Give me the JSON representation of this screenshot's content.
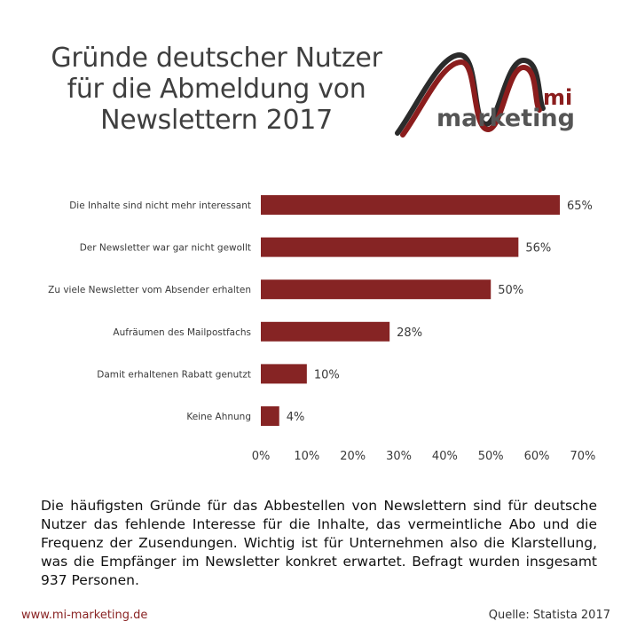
{
  "title_lines": [
    "Gründe deutscher Nutzer",
    "für die Abmeldung von",
    "Newslettern 2017"
  ],
  "logo": {
    "mark": "mi",
    "word": "marketing",
    "colors": {
      "red": "#8b1d1d",
      "gray": "#555555",
      "dark": "#2b2b2b"
    }
  },
  "chart_data": {
    "type": "bar",
    "orientation": "horizontal",
    "categories": [
      "Die Inhalte sind nicht mehr interessant",
      "Der Newsletter war gar nicht gewollt",
      "Zu viele Newsletter vom Absender erhalten",
      "Aufräumen des Mailpostfachs",
      "Damit erhaltenen Rabatt genutzt",
      "Keine Ahnung"
    ],
    "values": [
      65,
      56,
      50,
      28,
      10,
      4
    ],
    "value_labels": [
      "65%",
      "56%",
      "50%",
      "28%",
      "10%",
      "4%"
    ],
    "xlim": [
      0,
      70
    ],
    "x_ticks": [
      0,
      10,
      20,
      30,
      40,
      50,
      60,
      70
    ],
    "x_tick_labels": [
      "0%",
      "10%",
      "20%",
      "30%",
      "40%",
      "50%",
      "60%",
      "70%"
    ],
    "grid": false,
    "legend": "none",
    "bar_color": "#862424"
  },
  "description": "Die häufigsten Gründe für das Abbestellen von Newslettern sind für deutsche Nutzer das fehlende Interesse für die Inhalte, das vermeintliche Abo und die Frequenz der Zusendungen. Wichtig ist für Unternehmen also die Klarstellung, was die Empfänger im Newsletter konkret erwartet. Befragt wurden insgesamt 937 Personen.",
  "footer": {
    "url": "www.mi-marketing.de",
    "source": "Quelle: Statista 2017"
  }
}
